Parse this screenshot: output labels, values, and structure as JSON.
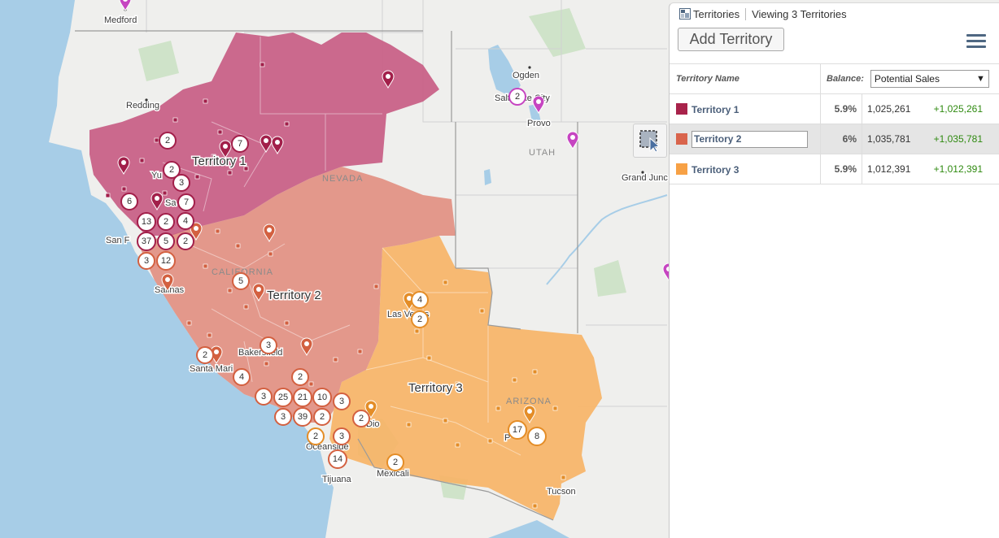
{
  "map": {
    "state_labels": [
      "NEVADA",
      "UTAH",
      "ARIZONA",
      "CALIFORNIA"
    ],
    "cities": [
      "Medford",
      "Redding",
      "Ogden",
      "Salt Lake City",
      "Provo",
      "Grand Junc",
      "San F",
      "Yu",
      "Sa",
      "Salinas",
      "Las Vegas",
      "Bakersfield",
      "Santa Mari",
      "Oceanside",
      "Tijuana",
      "Mexicali",
      "Tucson",
      "P",
      "Dio"
    ],
    "territory_labels": [
      "Territory 1",
      "Territory 2",
      "Territory 3"
    ],
    "clusters": {
      "t1": [
        "2",
        "7",
        "2",
        "3",
        "6",
        "7",
        "13",
        "2",
        "4",
        "37",
        "5",
        "2"
      ],
      "t2": [
        "3",
        "12",
        "5",
        "3",
        "2",
        "4",
        "2",
        "3",
        "25",
        "21",
        "10",
        "3",
        "39",
        "2",
        "3",
        "2",
        "3",
        "14"
      ],
      "t3": [
        "4",
        "2",
        "2",
        "2",
        "17",
        "8"
      ],
      "other": [
        "2"
      ]
    },
    "colors": {
      "territory_1": "#c75a82",
      "territory_2": "#e18e80",
      "territory_3": "#f7b467",
      "water": "#a7cde7",
      "land": "#efefed",
      "pin_other": "#c645c1"
    }
  },
  "panel": {
    "title": "Territories",
    "subtitle": "Viewing 3 Territories",
    "add_button": "Add Territory",
    "menu_icon": "hamburger-menu-icon",
    "columns": {
      "name": "Territory Name",
      "balance": "Balance:",
      "balance_select": "Potential Sales"
    },
    "rows": [
      {
        "name": "Territory 1",
        "color": "#a8234b",
        "pct": "5.9%",
        "value": "1,025,261",
        "diff": "+1,025,261"
      },
      {
        "name": "Territory 2",
        "color": "#d9644c",
        "pct": "6%",
        "value": "1,035,781",
        "diff": "+1,035,781"
      },
      {
        "name": "Territory 3",
        "color": "#f7a145",
        "pct": "5.9%",
        "value": "1,012,391",
        "diff": "+1,012,391"
      }
    ]
  }
}
